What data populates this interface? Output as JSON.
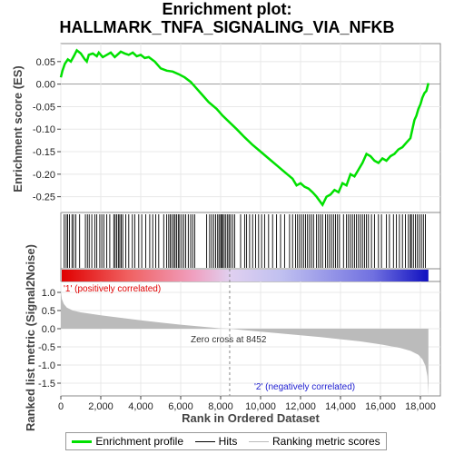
{
  "title_line1": "Enrichment plot:",
  "title_line2": "HALLMARK_TNFA_SIGNALING_VIA_NFKB",
  "chart_data": {
    "type": "line",
    "es_panel": {
      "ylabel": "Enrichment score (ES)",
      "yticks": [
        "0.05",
        "0.00",
        "-0.05",
        "-0.10",
        "-0.15",
        "-0.20",
        "-0.25"
      ],
      "ylim": [
        -0.285,
        0.09
      ],
      "series": [
        {
          "name": "Enrichment profile",
          "color": "#00e000",
          "x": [
            0,
            80,
            200,
            350,
            500,
            650,
            800,
            1000,
            1200,
            1300,
            1400,
            1600,
            1800,
            1900,
            2100,
            2300,
            2500,
            2700,
            2900,
            3000,
            3200,
            3400,
            3600,
            3800,
            4000,
            4200,
            4400,
            4700,
            5000,
            5300,
            5600,
            5900,
            6200,
            6500,
            6800,
            7100,
            7400,
            7800,
            8100,
            8452,
            8800,
            9200,
            9600,
            10000,
            10400,
            10800,
            11200,
            11600,
            11800,
            12000,
            12200,
            12400,
            12600,
            12800,
            13000,
            13100,
            13300,
            13500,
            13700,
            13900,
            14100,
            14300,
            14500,
            14700,
            14900,
            15100,
            15300,
            15500,
            15700,
            15900,
            16100,
            16300,
            16500,
            16700,
            16900,
            17100,
            17300,
            17500,
            17600,
            17700,
            17800,
            17900,
            18000,
            18100,
            18200,
            18300,
            18400
          ],
          "y": [
            0.015,
            0.03,
            0.045,
            0.055,
            0.05,
            0.062,
            0.075,
            0.068,
            0.055,
            0.05,
            0.065,
            0.068,
            0.062,
            0.07,
            0.06,
            0.065,
            0.07,
            0.06,
            0.068,
            0.072,
            0.068,
            0.065,
            0.07,
            0.062,
            0.065,
            0.058,
            0.06,
            0.05,
            0.035,
            0.03,
            0.028,
            0.022,
            0.015,
            0.005,
            -0.01,
            -0.025,
            -0.04,
            -0.055,
            -0.07,
            -0.085,
            -0.1,
            -0.118,
            -0.135,
            -0.15,
            -0.165,
            -0.18,
            -0.195,
            -0.21,
            -0.225,
            -0.22,
            -0.228,
            -0.232,
            -0.24,
            -0.25,
            -0.262,
            -0.268,
            -0.25,
            -0.245,
            -0.235,
            -0.24,
            -0.22,
            -0.225,
            -0.2,
            -0.205,
            -0.19,
            -0.175,
            -0.155,
            -0.16,
            -0.17,
            -0.175,
            -0.165,
            -0.17,
            -0.16,
            -0.155,
            -0.145,
            -0.14,
            -0.13,
            -0.12,
            -0.1,
            -0.08,
            -0.07,
            -0.055,
            -0.045,
            -0.03,
            -0.02,
            -0.015,
            0.002
          ]
        }
      ]
    },
    "hits": [
      170,
      270,
      340,
      430,
      560,
      640,
      750,
      940,
      1230,
      1330,
      1420,
      1550,
      1700,
      1800,
      1950,
      2050,
      2150,
      2300,
      2450,
      2650,
      2720,
      2800,
      2880,
      2950,
      3020,
      3100,
      3250,
      3400,
      3580,
      3700,
      3900,
      4050,
      4250,
      4450,
      4600,
      4750,
      4900,
      5150,
      5300,
      5400,
      5480,
      5560,
      5650,
      5720,
      5800,
      5880,
      5950,
      6050,
      6150,
      6250,
      6380,
      6500,
      6600,
      6700,
      7300,
      7450,
      7550,
      7650,
      7750,
      7850,
      7920,
      8000,
      8050,
      8100,
      8180,
      8260,
      8350,
      8420,
      8500,
      8600,
      8700,
      9000,
      9200,
      9300,
      9450,
      9600,
      9750,
      9900,
      10050,
      10200,
      10400,
      10600,
      10800,
      11000,
      11200,
      11450,
      11600,
      11750,
      11850,
      11950,
      12050,
      12150,
      12250,
      12350,
      12450,
      12550,
      12650,
      12800,
      12900,
      13000,
      13100,
      13250,
      13350,
      13450,
      13550,
      13650,
      13750,
      13850,
      13950,
      14150,
      14300,
      14400,
      14500,
      14600,
      14700,
      14800,
      14900,
      15000,
      15100,
      15200,
      15300,
      15400,
      15550,
      15700,
      15900,
      16050,
      16300,
      16450,
      16650,
      16800,
      16950,
      17100,
      17250,
      17400,
      17500,
      17550,
      17650,
      17750,
      17850,
      17950,
      18050,
      18150,
      18250
    ],
    "metric_panel": {
      "ylabel": "Ranked list metric (Signal2Noise)",
      "yticks": [
        "1.0",
        "0.5",
        "0.0",
        "-0.5",
        "-1.0",
        "-1.5"
      ],
      "ylim": [
        -1.85,
        1.3
      ],
      "x": [
        0,
        50,
        150,
        300,
        600,
        1000,
        2000,
        3000,
        4000,
        5000,
        6000,
        7000,
        8000,
        8452,
        9000,
        10000,
        11000,
        12000,
        13000,
        14000,
        15000,
        16000,
        17000,
        17500,
        17900,
        18100,
        18250,
        18350,
        18400
      ],
      "y": [
        1.05,
        0.82,
        0.68,
        0.58,
        0.5,
        0.45,
        0.37,
        0.3,
        0.23,
        0.17,
        0.11,
        0.06,
        0.01,
        0.0,
        -0.03,
        -0.08,
        -0.13,
        -0.18,
        -0.23,
        -0.29,
        -0.35,
        -0.43,
        -0.53,
        -0.61,
        -0.72,
        -0.84,
        -1.02,
        -1.3,
        -1.82
      ]
    },
    "xlabel": "Rank in Ordered Dataset",
    "xticks": [
      "0",
      "2,000",
      "4,000",
      "6,000",
      "8,000",
      "10,000",
      "12,000",
      "14,000",
      "16,000",
      "18,000"
    ],
    "xtick_values": [
      0,
      2000,
      4000,
      6000,
      8000,
      10000,
      12000,
      14000,
      16000,
      18000
    ],
    "xlim": [
      0,
      19000
    ],
    "n_genes": 18400,
    "zero_cross": 8452,
    "zero_cross_label": "Zero cross at 8452",
    "pos_label": "'1' (positively correlated)",
    "neg_label": "'2' (negatively correlated)",
    "pos_color": "#e00000",
    "neg_color": "#2020d0",
    "legend": [
      {
        "label": "Enrichment profile",
        "color": "#00e000"
      },
      {
        "label": "Hits",
        "color": "#000000"
      },
      {
        "label": "Ranking metric scores",
        "color": "#bbbbbb"
      }
    ]
  }
}
